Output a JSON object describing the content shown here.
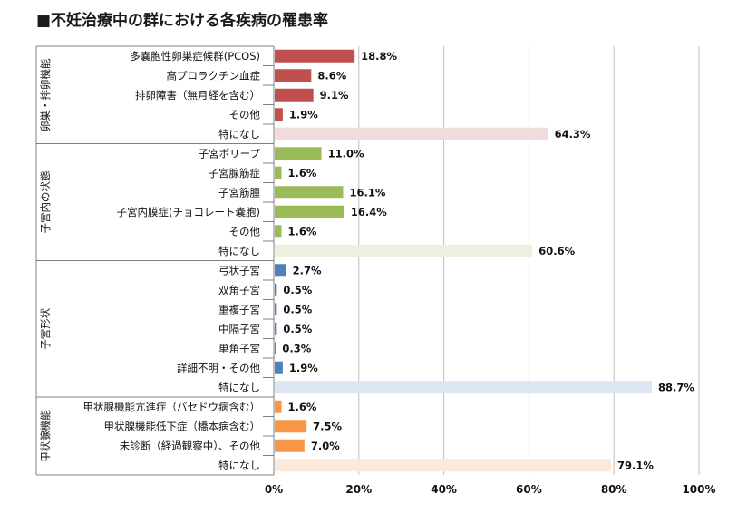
{
  "chart_data": {
    "type": "bar",
    "orientation": "horizontal",
    "title": "■不妊治療中の群における各疾病の罹患率",
    "xlim": [
      0,
      100
    ],
    "xticks": [
      "0%",
      "20%",
      "40%",
      "60%",
      "80%",
      "100%"
    ],
    "grid": "vertical",
    "colors": {
      "ovary": "#c0504d",
      "uterus_inside": "#9bbb59",
      "uterus_shape": "#4f81bd",
      "thyroid": "#f79646"
    },
    "groups": [
      {
        "label": "卵巣・排卵機能",
        "color_key": "ovary",
        "light_color": "#f2dcdb",
        "items": [
          {
            "label": "多嚢胞性卵巣症候群(PCOS)",
            "value": 18.8,
            "value_label": "18.8%"
          },
          {
            "label": "高プロラクチン血症",
            "value": 8.6,
            "value_label": "8.6%"
          },
          {
            "label": "排卵障害（無月経を含む）",
            "value": 9.1,
            "value_label": "9.1%"
          },
          {
            "label": "その他",
            "value": 1.9,
            "value_label": "1.9%"
          },
          {
            "label": "特になし",
            "value": 64.3,
            "value_label": "64.3%",
            "none": true
          }
        ]
      },
      {
        "label": "子宮内の状態",
        "color_key": "uterus_inside",
        "light_color": "#ebf1de",
        "items": [
          {
            "label": "子宮ポリープ",
            "value": 11.0,
            "value_label": "11.0%"
          },
          {
            "label": "子宮腺筋症",
            "value": 1.6,
            "value_label": "1.6%"
          },
          {
            "label": "子宮筋腫",
            "value": 16.1,
            "value_label": "16.1%"
          },
          {
            "label": "子宮内膜症(チョコレート嚢胞)",
            "value": 16.4,
            "value_label": "16.4%"
          },
          {
            "label": "その他",
            "value": 1.6,
            "value_label": "1.6%"
          },
          {
            "label": "特になし",
            "value": 60.6,
            "value_label": "60.6%",
            "none": true
          }
        ]
      },
      {
        "label": "子宮形状",
        "color_key": "uterus_shape",
        "light_color": "#dce6f2",
        "items": [
          {
            "label": "弓状子宮",
            "value": 2.7,
            "value_label": "2.7%"
          },
          {
            "label": "双角子宮",
            "value": 0.5,
            "value_label": "0.5%"
          },
          {
            "label": "重複子宮",
            "value": 0.5,
            "value_label": "0.5%"
          },
          {
            "label": "中隔子宮",
            "value": 0.5,
            "value_label": "0.5%"
          },
          {
            "label": "単角子宮",
            "value": 0.3,
            "value_label": "0.3%"
          },
          {
            "label": "詳細不明・その他",
            "value": 1.9,
            "value_label": "1.9%"
          },
          {
            "label": "特になし",
            "value": 88.7,
            "value_label": "88.7%",
            "none": true
          }
        ]
      },
      {
        "label": "甲状腺機能",
        "color_key": "thyroid",
        "light_color": "#fde9d9",
        "items": [
          {
            "label": "甲状腺機能亢進症（バセドウ病含む）",
            "value": 1.6,
            "value_label": "1.6%"
          },
          {
            "label": "甲状腺機能低下症（橋本病含む）",
            "value": 7.5,
            "value_label": "7.5%"
          },
          {
            "label": "未診断（経過観察中）、その他",
            "value": 7.0,
            "value_label": "7.0%"
          },
          {
            "label": "特になし",
            "value": 79.1,
            "value_label": "79.1%",
            "none": true
          }
        ]
      }
    ]
  }
}
